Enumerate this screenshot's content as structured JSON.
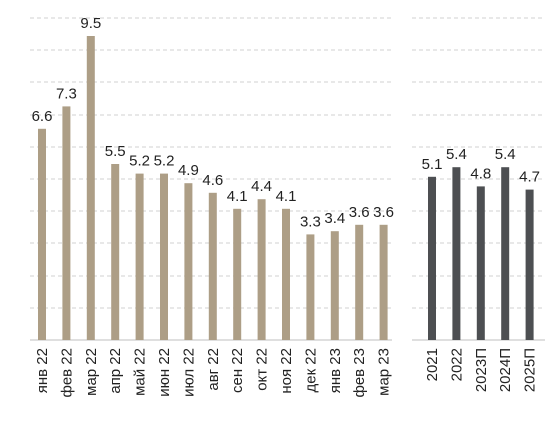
{
  "chart_data": [
    {
      "type": "bar",
      "categories": [
        "янв 22",
        "фев 22",
        "мар 22",
        "апр 22",
        "май 22",
        "июн 22",
        "июл 22",
        "авг 22",
        "сен 22",
        "окт 22",
        "ноя 22",
        "дек 22",
        "янв 23",
        "фев 23",
        "мар 23"
      ],
      "values": [
        6.6,
        7.3,
        9.5,
        5.5,
        5.2,
        5.2,
        4.9,
        4.6,
        4.1,
        4.4,
        4.1,
        3.3,
        3.4,
        3.6,
        3.6
      ],
      "title": "",
      "xlabel": "",
      "ylabel": "",
      "ylim": [
        0,
        9.5
      ],
      "grid": true,
      "color": "#ad9e86"
    },
    {
      "type": "bar",
      "categories": [
        "2021",
        "2022",
        "2023П",
        "2024П",
        "2025П"
      ],
      "values": [
        5.1,
        5.4,
        4.8,
        5.4,
        4.7
      ],
      "title": "",
      "xlabel": "",
      "ylabel": "",
      "ylim": [
        0,
        9.5
      ],
      "grid": true,
      "color": "#4d4f52"
    }
  ]
}
